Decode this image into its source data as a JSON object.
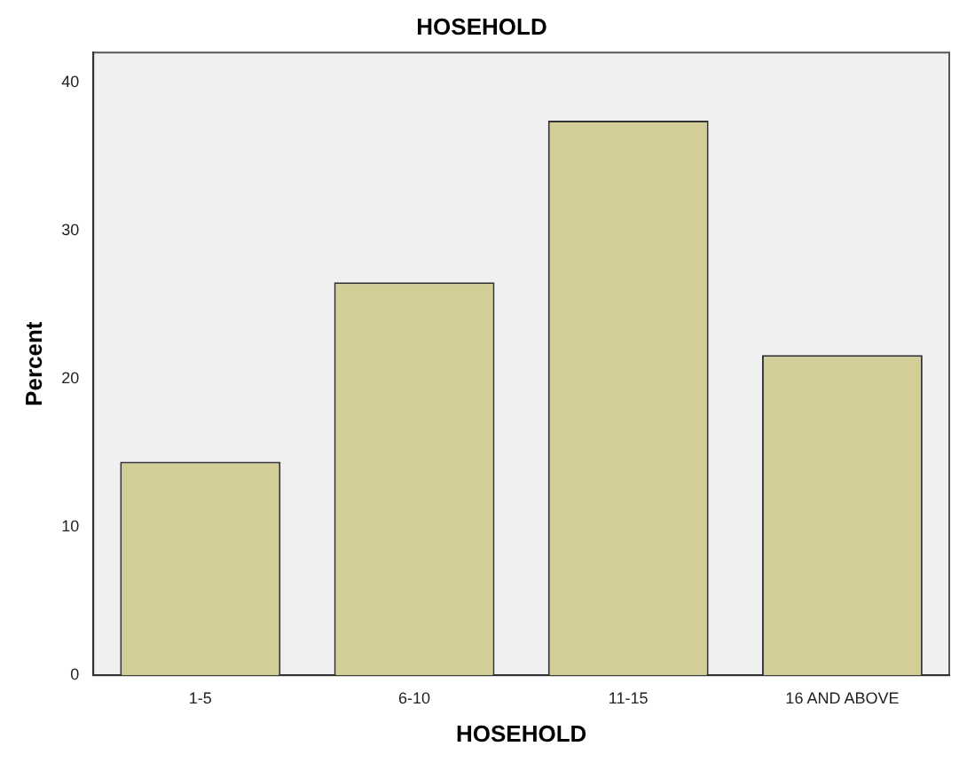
{
  "chart_data": {
    "type": "bar",
    "title": "HOSEHOLD",
    "xlabel": "HOSEHOLD",
    "ylabel": "Percent",
    "categories": [
      "1-5",
      "6-10",
      "11-15",
      "16 AND ABOVE"
    ],
    "values": [
      14.4,
      26.5,
      37.4,
      21.6
    ],
    "color": "#d3ce97",
    "ylim": [
      0,
      42
    ],
    "yticks": [
      0,
      10,
      20,
      30,
      40
    ],
    "grid": false,
    "legend": false
  }
}
